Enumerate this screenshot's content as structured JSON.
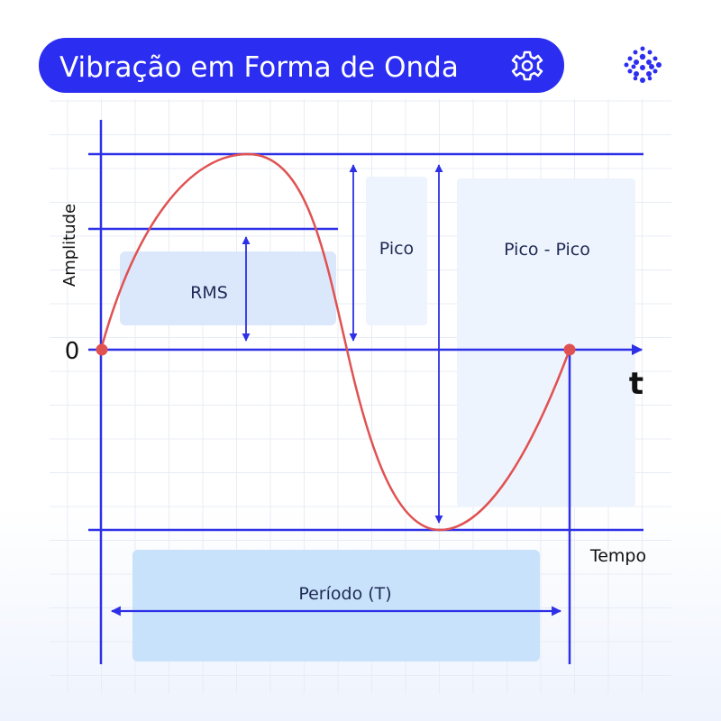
{
  "header": {
    "title": "Vibração em Forma de Onda",
    "icon": "gear-icon"
  },
  "logo": {
    "icon": "dots-logo"
  },
  "diagram": {
    "y_axis_label": "Amplitude",
    "x_axis_label": "t",
    "x_axis_caption": "Tempo",
    "origin_label": "0",
    "rms_label": "RMS",
    "peak_label": "Pico",
    "peak_to_peak_label": "Pico - Pico",
    "period_label": "Período (T)"
  },
  "colors": {
    "accent": "#2b2ef0",
    "axis": "#2d30e6",
    "wave": "#e05252",
    "box_light": "#eef4fd",
    "box_mid": "#dbe7fb",
    "box_period": "#c8e2fb"
  }
}
